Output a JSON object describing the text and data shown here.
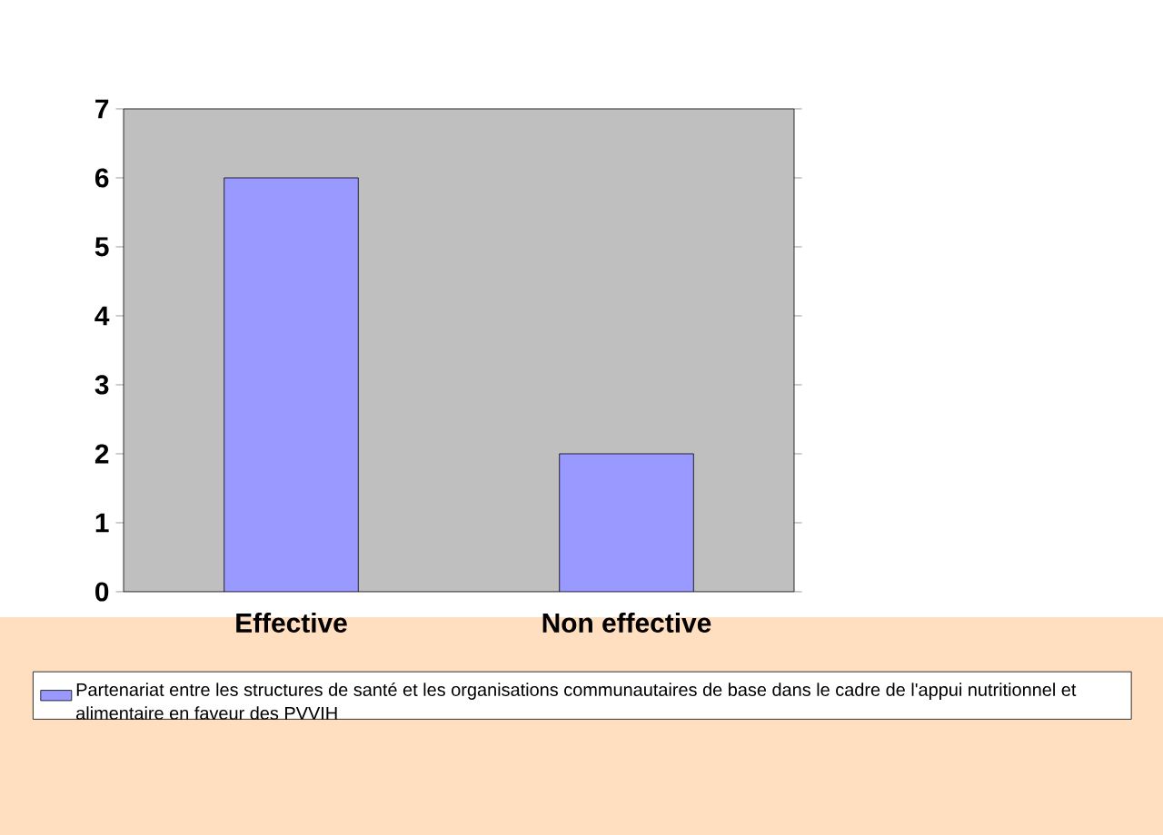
{
  "chart_data": {
    "type": "bar",
    "categories": [
      "Effective",
      "Non effective"
    ],
    "series": [
      {
        "name": "Partenariat entre les structures de santé et les organisations communautaires de base dans le cadre de l'appui nutritionnel et alimentaire en faveur des PVVIH",
        "color": "#9999ff",
        "values": [
          6,
          2
        ]
      }
    ],
    "ylim": [
      0,
      7
    ],
    "yticks": [
      0,
      1,
      2,
      3,
      4,
      5,
      6,
      7
    ],
    "grid": false,
    "legend": "bottom"
  }
}
